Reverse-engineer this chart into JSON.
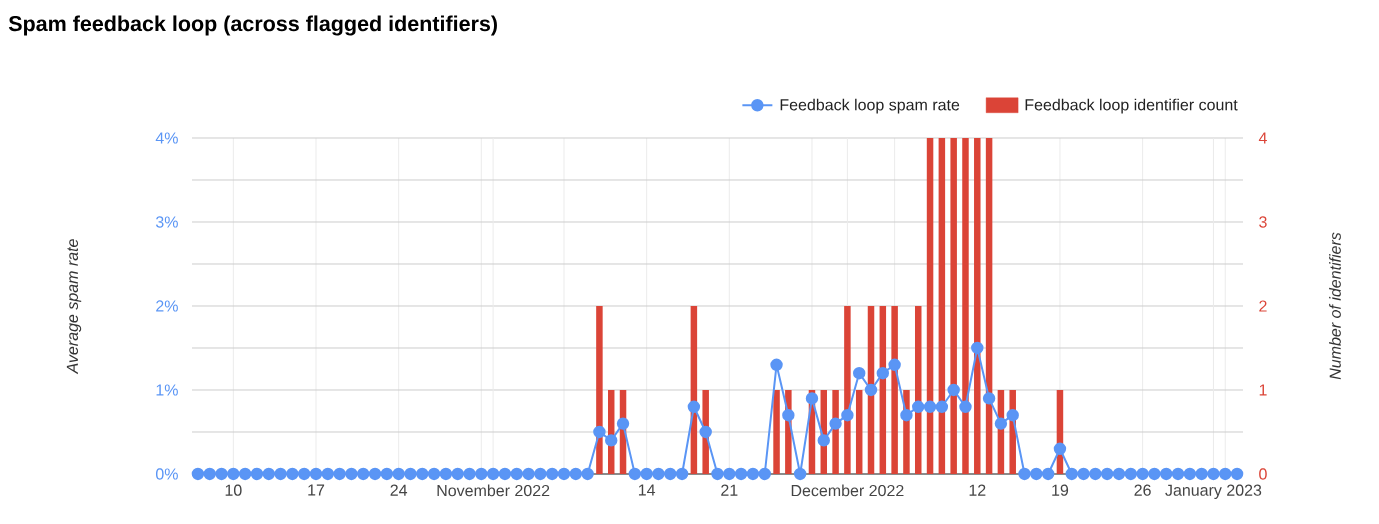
{
  "chart_data": {
    "type": "line",
    "title": "Spam feedback loop (across flagged identifiers)",
    "ylabel": "Average spam rate",
    "y2label": "Number of identifiers",
    "x": [
      "2022-10-07",
      "2022-10-08",
      "2022-10-09",
      "2022-10-10",
      "2022-10-11",
      "2022-10-12",
      "2022-10-13",
      "2022-10-14",
      "2022-10-15",
      "2022-10-16",
      "2022-10-17",
      "2022-10-18",
      "2022-10-19",
      "2022-10-20",
      "2022-10-21",
      "2022-10-22",
      "2022-10-23",
      "2022-10-24",
      "2022-10-25",
      "2022-10-26",
      "2022-10-27",
      "2022-10-28",
      "2022-10-29",
      "2022-10-30",
      "2022-10-31",
      "2022-11-01",
      "2022-11-02",
      "2022-11-03",
      "2022-11-04",
      "2022-11-05",
      "2022-11-06",
      "2022-11-07",
      "2022-11-08",
      "2022-11-09",
      "2022-11-10",
      "2022-11-11",
      "2022-11-12",
      "2022-11-13",
      "2022-11-14",
      "2022-11-15",
      "2022-11-16",
      "2022-11-17",
      "2022-11-18",
      "2022-11-19",
      "2022-11-20",
      "2022-11-21",
      "2022-11-22",
      "2022-11-23",
      "2022-11-24",
      "2022-11-25",
      "2022-11-26",
      "2022-11-27",
      "2022-11-28",
      "2022-11-29",
      "2022-11-30",
      "2022-12-01",
      "2022-12-02",
      "2022-12-03",
      "2022-12-04",
      "2022-12-05",
      "2022-12-06",
      "2022-12-07",
      "2022-12-08",
      "2022-12-09",
      "2022-12-10",
      "2022-12-11",
      "2022-12-12",
      "2022-12-13",
      "2022-12-14",
      "2022-12-15",
      "2022-12-16",
      "2022-12-17",
      "2022-12-18",
      "2022-12-19",
      "2022-12-20",
      "2022-12-21",
      "2022-12-22",
      "2022-12-23",
      "2022-12-24",
      "2022-12-25",
      "2022-12-26",
      "2022-12-27",
      "2022-12-28",
      "2022-12-29",
      "2022-12-30",
      "2022-12-31",
      "2023-01-01",
      "2023-01-02",
      "2023-01-03"
    ],
    "series": [
      {
        "name": "Feedback loop spam rate",
        "axis": "y",
        "color": "#5a95f5",
        "values": [
          0,
          0,
          0,
          0,
          0,
          0,
          0,
          0,
          0,
          0,
          0,
          0,
          0,
          0,
          0,
          0,
          0,
          0,
          0,
          0,
          0,
          0,
          0,
          0,
          0,
          0,
          0,
          0,
          0,
          0,
          0,
          0,
          0,
          0,
          0.5,
          0.4,
          0.6,
          0,
          0,
          0,
          0,
          0,
          0.8,
          0.5,
          0,
          0,
          0,
          0,
          0,
          1.3,
          0.7,
          0,
          0.9,
          0.4,
          0.6,
          0.7,
          1.2,
          1.0,
          1.2,
          1.3,
          0.7,
          0.8,
          0.8,
          0.8,
          1.0,
          0.8,
          1.5,
          0.9,
          0.6,
          0.7,
          0,
          0,
          0,
          0.3,
          0,
          0,
          0,
          0,
          0,
          0,
          0,
          0,
          0,
          0,
          0,
          0,
          0,
          0,
          0
        ]
      },
      {
        "name": "Feedback loop identifier count",
        "type": "bar",
        "axis": "y2",
        "color": "#db4437",
        "values": [
          0,
          0,
          0,
          0,
          0,
          0,
          0,
          0,
          0,
          0,
          0,
          0,
          0,
          0,
          0,
          0,
          0,
          0,
          0,
          0,
          0,
          0,
          0,
          0,
          0,
          0,
          0,
          0,
          0,
          0,
          0,
          0,
          0,
          0,
          2,
          1,
          1,
          0,
          0,
          0,
          0,
          0,
          2,
          1,
          0,
          0,
          0,
          0,
          0,
          1,
          1,
          0,
          1,
          1,
          1,
          2,
          1,
          2,
          2,
          2,
          1,
          2,
          4,
          4,
          4,
          4,
          4,
          4,
          1,
          1,
          0,
          0,
          0,
          1,
          0,
          0,
          0,
          0,
          0,
          0,
          0,
          0,
          0,
          0,
          0,
          0,
          0,
          0,
          0
        ]
      }
    ],
    "xlim": [
      "2022-10-06T12:00",
      "2023-01-03T12:00"
    ],
    "xticks": [
      {
        "value": "2022-10-10",
        "label": "10"
      },
      {
        "value": "2022-10-17",
        "label": "17"
      },
      {
        "value": "2022-10-24",
        "label": "24"
      },
      {
        "value": "2022-10-31",
        "label": null
      },
      {
        "value": "2022-11-01",
        "label": "November 2022"
      },
      {
        "value": "2022-11-07",
        "label": null
      },
      {
        "value": "2022-11-14",
        "label": "14"
      },
      {
        "value": "2022-11-21",
        "label": "21"
      },
      {
        "value": "2022-11-28",
        "label": null
      },
      {
        "value": "2022-12-01",
        "label": "December 2022"
      },
      {
        "value": "2022-12-05",
        "label": null
      },
      {
        "value": "2022-12-12",
        "label": "12"
      },
      {
        "value": "2022-12-19",
        "label": "19"
      },
      {
        "value": "2022-12-26",
        "label": "26"
      },
      {
        "value": "2023-01-01",
        "label": "January 2023"
      },
      {
        "value": "2023-01-02",
        "label": null
      }
    ],
    "ylim": [
      0,
      4
    ],
    "yticks": [
      {
        "value": 0,
        "label": "0%"
      },
      {
        "value": 0.5,
        "label": null
      },
      {
        "value": 1,
        "label": "1%"
      },
      {
        "value": 1.5,
        "label": null
      },
      {
        "value": 2,
        "label": "2%"
      },
      {
        "value": 2.5,
        "label": null
      },
      {
        "value": 3,
        "label": "3%"
      },
      {
        "value": 3.5,
        "label": null
      },
      {
        "value": 4,
        "label": "4%"
      }
    ],
    "y2lim": [
      0,
      4
    ],
    "y2ticks": [
      0,
      1,
      2,
      3,
      4
    ],
    "grid": true,
    "legend": "top right",
    "marker": "circle",
    "line_style": "solid"
  }
}
